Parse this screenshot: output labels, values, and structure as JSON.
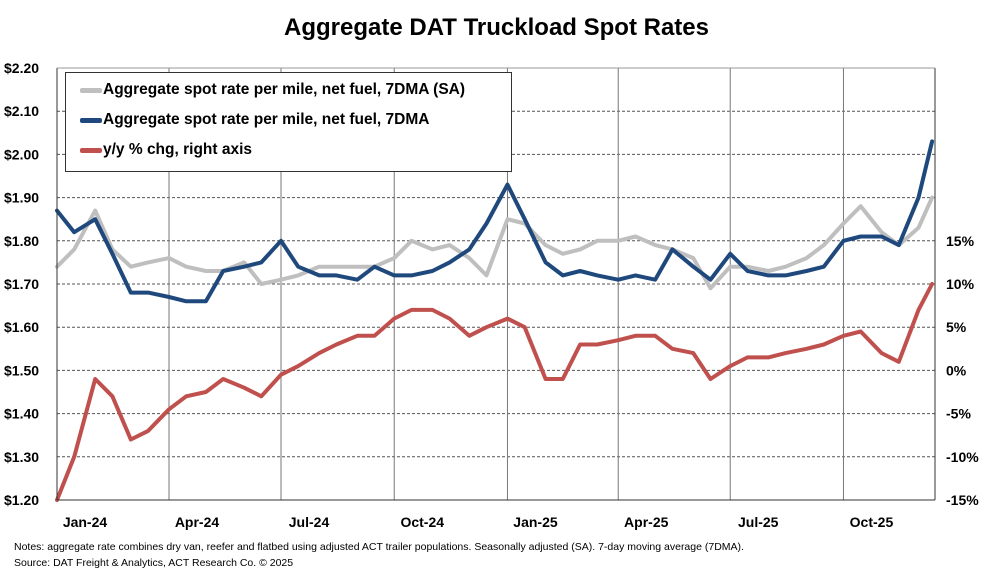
{
  "chart_data": {
    "type": "line",
    "title": "Aggregate DAT Truckload Spot Rates",
    "x_ticks": [
      "Jan-24",
      "Apr-24",
      "Jul-24",
      "Oct-24",
      "Jan-25",
      "Apr-25",
      "Jul-25",
      "Oct-25"
    ],
    "x_tick_dates": [
      "2024-01-01",
      "2024-04-01",
      "2024-07-01",
      "2024-10-01",
      "2025-01-01",
      "2025-04-01",
      "2025-07-01",
      "2025-10-01"
    ],
    "xlim": [
      "2024-01-01",
      "2025-12-15"
    ],
    "y_left": {
      "ticks": [
        "$1.20",
        "$1.30",
        "$1.40",
        "$1.50",
        "$1.60",
        "$1.70",
        "$1.80",
        "$1.90",
        "$2.00",
        "$2.10",
        "$2.20"
      ],
      "range": [
        1.2,
        2.2
      ]
    },
    "y_right": {
      "ticks": [
        "-15%",
        "-10%",
        "-5%",
        "0%",
        "5%",
        "10%",
        "15%"
      ],
      "tick_values": [
        -15,
        -10,
        -5,
        0,
        5,
        10,
        15
      ],
      "range": [
        -15,
        35
      ]
    },
    "grid": "horizontal dashed, vertical solid at quarter starts",
    "legend_position": "top-left",
    "x": [
      "2024-01-01",
      "2024-01-15",
      "2024-02-01",
      "2024-02-15",
      "2024-03-01",
      "2024-03-15",
      "2024-04-01",
      "2024-04-15",
      "2024-05-01",
      "2024-05-15",
      "2024-06-01",
      "2024-06-15",
      "2024-07-01",
      "2024-07-15",
      "2024-08-01",
      "2024-08-15",
      "2024-09-01",
      "2024-09-15",
      "2024-10-01",
      "2024-10-15",
      "2024-11-01",
      "2024-11-15",
      "2024-12-01",
      "2024-12-15",
      "2025-01-01",
      "2025-01-15",
      "2025-02-01",
      "2025-02-15",
      "2025-03-01",
      "2025-03-15",
      "2025-04-01",
      "2025-04-15",
      "2025-05-01",
      "2025-05-15",
      "2025-06-01",
      "2025-06-15",
      "2025-07-01",
      "2025-07-15",
      "2025-08-01",
      "2025-08-15",
      "2025-09-01",
      "2025-09-15",
      "2025-10-01",
      "2025-10-15",
      "2025-11-01",
      "2025-11-15",
      "2025-12-01",
      "2025-12-12"
    ],
    "series": [
      {
        "name": "Aggregate spot rate per mile, net fuel, 7DMA (SA)",
        "axis": "left",
        "color": "#BFBFBF",
        "values": [
          1.74,
          1.78,
          1.87,
          1.78,
          1.74,
          1.75,
          1.76,
          1.74,
          1.73,
          1.73,
          1.75,
          1.7,
          1.71,
          1.72,
          1.74,
          1.74,
          1.74,
          1.74,
          1.76,
          1.8,
          1.78,
          1.79,
          1.76,
          1.72,
          1.85,
          1.84,
          1.79,
          1.77,
          1.78,
          1.8,
          1.8,
          1.81,
          1.79,
          1.78,
          1.76,
          1.69,
          1.74,
          1.74,
          1.73,
          1.74,
          1.76,
          1.79,
          1.84,
          1.88,
          1.82,
          1.79,
          1.83,
          1.9
        ]
      },
      {
        "name": "Aggregate spot rate per mile, net fuel, 7DMA",
        "axis": "left",
        "color": "#1F497D",
        "values": [
          1.87,
          1.82,
          1.85,
          1.77,
          1.68,
          1.68,
          1.67,
          1.66,
          1.66,
          1.73,
          1.74,
          1.75,
          1.8,
          1.74,
          1.72,
          1.72,
          1.71,
          1.74,
          1.72,
          1.72,
          1.73,
          1.75,
          1.78,
          1.84,
          1.93,
          1.85,
          1.75,
          1.72,
          1.73,
          1.72,
          1.71,
          1.72,
          1.71,
          1.78,
          1.74,
          1.71,
          1.77,
          1.73,
          1.72,
          1.72,
          1.73,
          1.74,
          1.8,
          1.81,
          1.81,
          1.79,
          1.9,
          2.03
        ]
      },
      {
        "name": "y/y % chg, right axis",
        "axis": "right",
        "color": "#C0504D",
        "values": [
          -15,
          -10,
          -1,
          -3,
          -8,
          -7,
          -4.5,
          -3,
          -2.5,
          -1,
          -2,
          -3,
          -0.5,
          0.5,
          2,
          3,
          4,
          4,
          6,
          7,
          7,
          6,
          4,
          5,
          6,
          5,
          -1,
          -1,
          3,
          3,
          3.5,
          4,
          4,
          2.5,
          2,
          -1,
          0.5,
          1.5,
          1.5,
          2,
          2.5,
          3,
          4,
          4.5,
          2,
          1,
          7,
          10
        ]
      }
    ]
  },
  "notes": "Notes: aggregate rate combines dry van, reefer and flatbed using adjusted ACT trailer populations. Seasonally adjusted (SA). 7-day moving average (7DMA).",
  "source": "Source: DAT Freight & Analytics, ACT Research Co. © 2025"
}
